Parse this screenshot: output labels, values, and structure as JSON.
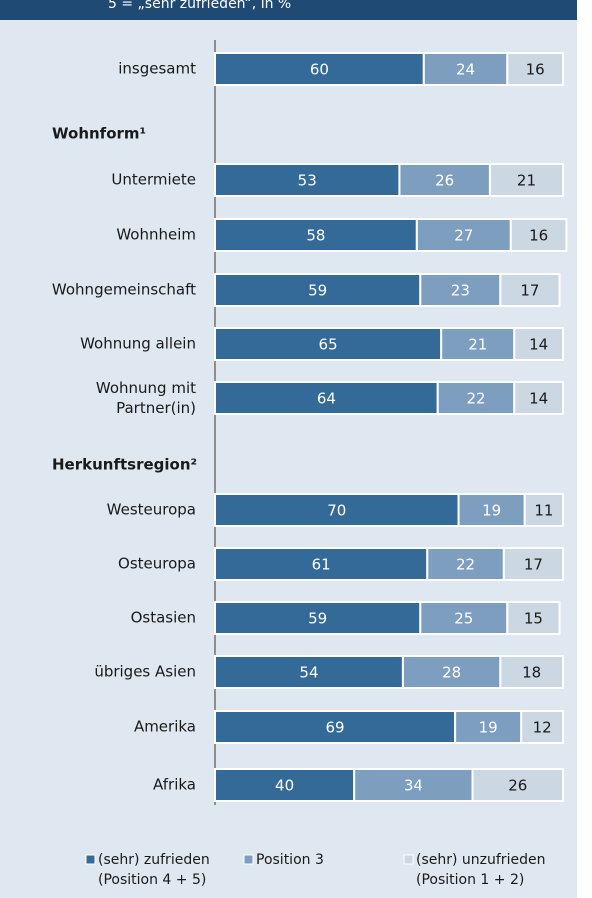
{
  "chart_data": {
    "type": "stacked-bar-horizontal",
    "subtitle": "5 = „sehr zufrieden“, in %",
    "categories": [
      "insgesamt",
      "Wohnform¹",
      "Untermiete",
      "Wohnheim",
      "Wohngemeinschaft",
      "Wohnung allein",
      "Wohnung mit Partner(in)",
      "Herkunftsregion²",
      "Westeuropa",
      "Osteuropa",
      "Ostasien",
      "übriges Asien",
      "Amerika",
      "Afrika"
    ],
    "series": [
      {
        "name": "(sehr) zufrieden (Position 4 + 5)",
        "color": "#346a98",
        "values": [
          60,
          null,
          53,
          58,
          59,
          65,
          64,
          null,
          70,
          61,
          59,
          54,
          69,
          40
        ]
      },
      {
        "name": "Position 3",
        "color": "#7e9ec0",
        "values": [
          24,
          null,
          26,
          27,
          23,
          21,
          22,
          null,
          19,
          22,
          25,
          28,
          19,
          34
        ]
      },
      {
        "name": "(sehr) unzufrieden (Position 1 + 2)",
        "color": "#ccd7e4",
        "values": [
          16,
          null,
          21,
          16,
          17,
          14,
          14,
          null,
          11,
          17,
          15,
          18,
          12,
          26
        ]
      }
    ],
    "xlim": [
      0,
      100
    ]
  }
}
